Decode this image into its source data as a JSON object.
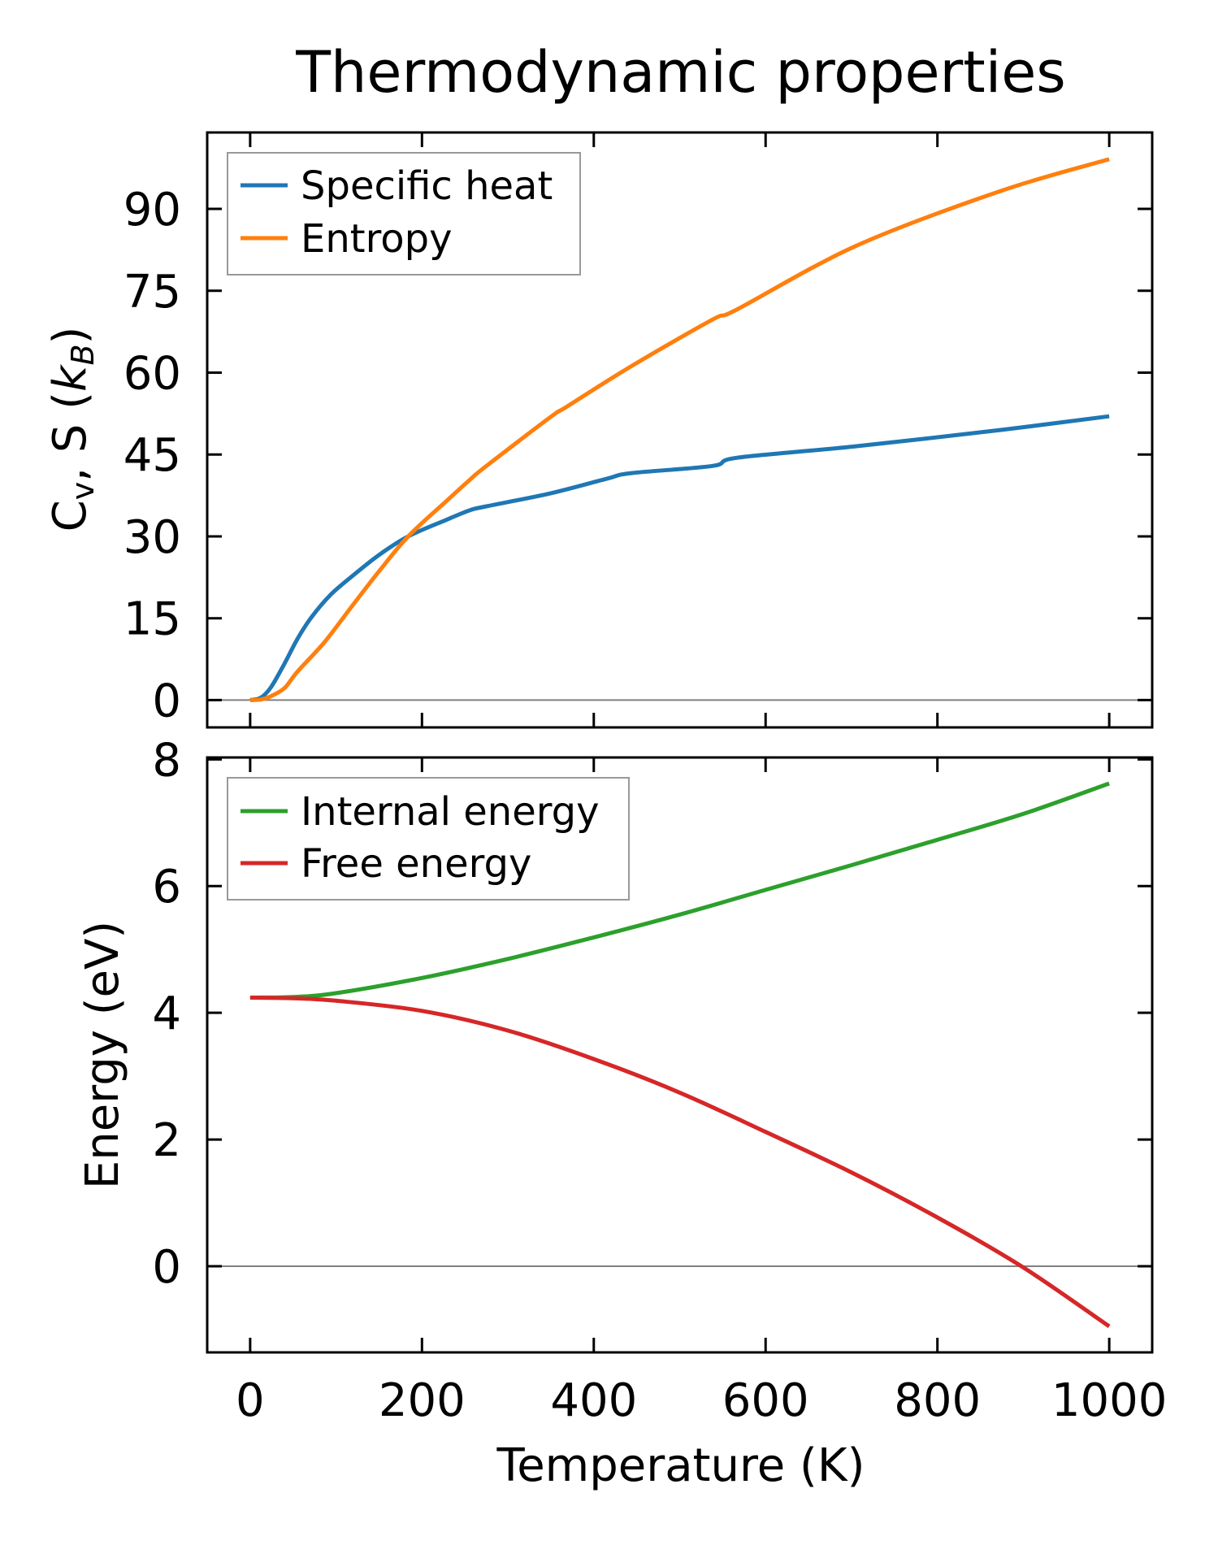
{
  "chart_data": [
    {
      "type": "line",
      "title": "Thermodynamic properties",
      "xlabel": "",
      "ylabel": "C_v, S (k_B)",
      "ylabel_parts": {
        "main": "C",
        "sub_v": "v",
        "mid": ", S (",
        "k": "k",
        "sub_B": "B",
        "end": ")"
      },
      "xlim": [
        -50,
        1050
      ],
      "ylim": [
        -5,
        104
      ],
      "xticks": [
        0,
        200,
        400,
        600,
        800,
        1000
      ],
      "xtick_labels_visible": false,
      "yticks": [
        0,
        15,
        30,
        45,
        60,
        75,
        90
      ],
      "ytick_labels": [
        "0",
        "15",
        "30",
        "45",
        "60",
        "75",
        "90"
      ],
      "zero_line": true,
      "grid": false,
      "legend_position": "upper-left",
      "series": [
        {
          "name": "Specific heat",
          "color": "#1f77b4",
          "x": [
            0,
            12,
            24,
            40,
            55,
            71,
            93,
            118,
            150,
            184,
            228,
            256,
            275,
            350,
            416,
            444,
            538,
            567,
            705,
            874,
            1000
          ],
          "y": [
            0,
            0.4,
            2.3,
            6.7,
            11.2,
            15.1,
            19.2,
            22.6,
            26.6,
            30.0,
            33.0,
            34.8,
            35.5,
            37.9,
            40.6,
            41.6,
            42.9,
            44.4,
            46.5,
            49.5,
            52.0
          ]
        },
        {
          "name": "Entropy",
          "color": "#ff7f0e",
          "x": [
            0,
            12,
            24,
            40,
            55,
            87,
            118,
            150,
            184,
            228,
            256,
            275,
            350,
            369,
            444,
            538,
            567,
            705,
            874,
            1000
          ],
          "y": [
            0,
            0.1,
            0.7,
            2.2,
            5.2,
            10.7,
            17.1,
            23.6,
            30.0,
            36.4,
            40.4,
            42.9,
            51.9,
            53.8,
            61.2,
            69.7,
            71.6,
            83.2,
            93.3,
            99.1
          ]
        }
      ]
    },
    {
      "type": "line",
      "title": "",
      "xlabel": "Temperature (K)",
      "ylabel": "Energy (eV)",
      "xlim": [
        -50,
        1050
      ],
      "ylim": [
        -1.36,
        8.03
      ],
      "xticks": [
        0,
        200,
        400,
        600,
        800,
        1000
      ],
      "xtick_labels": [
        "0",
        "200",
        "400",
        "600",
        "800",
        "1000"
      ],
      "yticks": [
        0,
        2,
        4,
        6,
        8
      ],
      "ytick_labels": [
        "0",
        "2",
        "4",
        "6",
        "8"
      ],
      "zero_line": true,
      "grid": false,
      "legend_position": "upper-left",
      "series": [
        {
          "name": "Internal energy",
          "color": "#2ca02c",
          "x": [
            0,
            50,
            100,
            200,
            300,
            400,
            500,
            600,
            700,
            800,
            900,
            1000
          ],
          "y": [
            4.24,
            4.25,
            4.31,
            4.55,
            4.85,
            5.19,
            5.55,
            5.94,
            6.33,
            6.73,
            7.14,
            7.62
          ]
        },
        {
          "name": "Free energy",
          "color": "#d62728",
          "x": [
            0,
            50,
            100,
            200,
            300,
            400,
            500,
            600,
            700,
            800,
            900,
            1000
          ],
          "y": [
            4.24,
            4.23,
            4.19,
            4.03,
            3.72,
            3.27,
            2.74,
            2.12,
            1.48,
            0.77,
            -0.02,
            -0.95
          ]
        }
      ]
    }
  ]
}
